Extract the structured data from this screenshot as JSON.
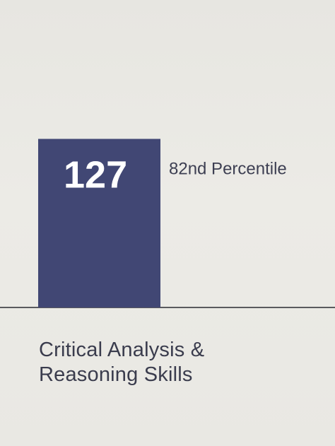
{
  "chart_data": {
    "type": "bar",
    "categories": [
      "Critical Analysis & Reasoning Skills"
    ],
    "category_lines": [
      "Critical Analysis &",
      "Reasoning Skills"
    ],
    "values": [
      127
    ],
    "value_labels": [
      "127"
    ],
    "annotations": [
      "82nd Percentile"
    ],
    "title": "",
    "xlabel": "",
    "ylabel": "",
    "ylim": [
      118,
      132
    ],
    "grid": false,
    "legend": "none",
    "colors": {
      "bar": "#414774",
      "value_text": "#ffffff",
      "annotation_text": "#3d3f52",
      "baseline": "#5a5a5e",
      "category_text": "#3a3c4d"
    }
  }
}
